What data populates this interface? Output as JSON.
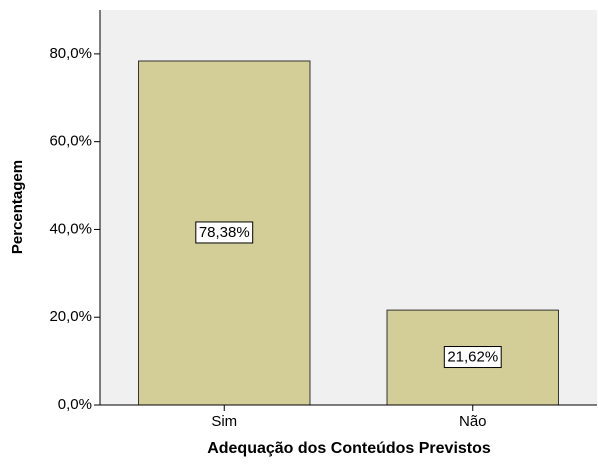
{
  "chart_data": {
    "type": "bar",
    "x_label": "Adequação dos Conteúdos Previstos",
    "y_label": "Percentagem",
    "categories": [
      "Sim",
      "Não"
    ],
    "values": [
      78.38,
      21.62
    ],
    "value_labels": [
      "78,38%",
      "21,62%"
    ],
    "color": "#d3ce97",
    "ylim": [
      0,
      90
    ],
    "yticks": [
      {
        "value": 0,
        "label": "0,0%"
      },
      {
        "value": 20,
        "label": "20,0%"
      },
      {
        "value": 40,
        "label": "40,0%"
      },
      {
        "value": 60,
        "label": "60,0%"
      },
      {
        "value": 80,
        "label": "80,0%"
      }
    ],
    "grid": false
  }
}
